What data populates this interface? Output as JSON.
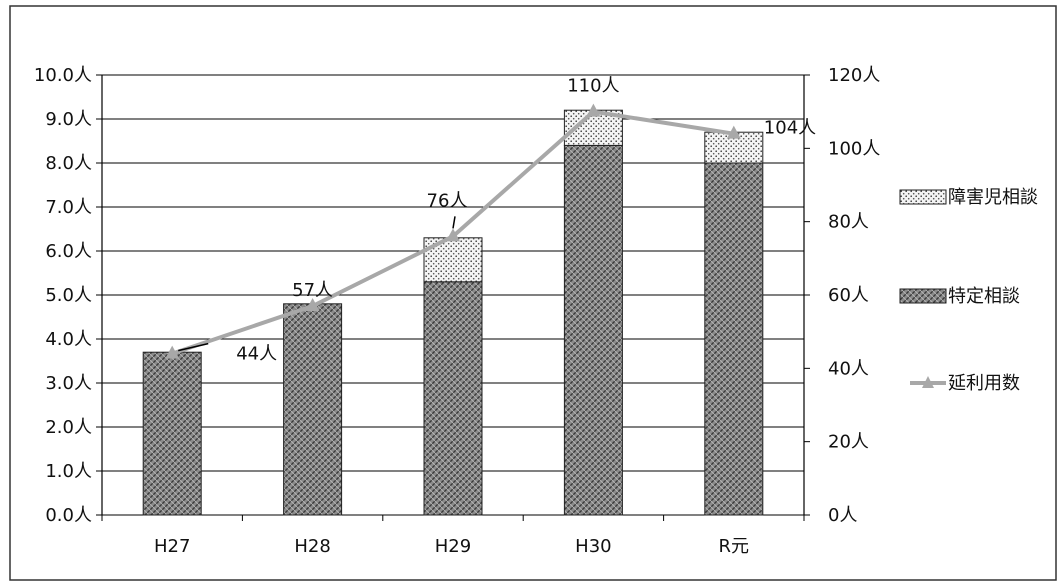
{
  "chart_data": {
    "type": "bar",
    "categories": [
      "H27",
      "H28",
      "H29",
      "H30",
      "R元"
    ],
    "series": [
      {
        "name": "特定相談",
        "kind": "bar",
        "axis": "left",
        "values": [
          3.7,
          4.8,
          5.3,
          8.4,
          8.0
        ],
        "pattern": "crosshatch"
      },
      {
        "name": "障害児相談",
        "kind": "bar",
        "axis": "left",
        "values": [
          0.0,
          0.0,
          1.0,
          0.8,
          0.7
        ],
        "pattern": "dots"
      },
      {
        "name": "延利用数",
        "kind": "line",
        "axis": "right",
        "values": [
          44,
          57,
          76,
          110,
          104
        ],
        "marker": "triangle"
      }
    ],
    "data_labels": [
      "44人",
      "57人",
      "76人",
      "110人",
      "104人"
    ],
    "left_axis": {
      "ylim": [
        0,
        10
      ],
      "ticks": [
        "0.0人",
        "1.0人",
        "2.0人",
        "3.0人",
        "4.0人",
        "5.0人",
        "6.0人",
        "7.0人",
        "8.0人",
        "9.0人",
        "10.0人"
      ]
    },
    "right_axis": {
      "ylim": [
        0,
        120
      ],
      "ticks": [
        "0人",
        "20人",
        "40人",
        "60人",
        "80人",
        "100人",
        "120人"
      ]
    },
    "grid": true,
    "legend_position": "right",
    "colors": {
      "line": "#a8a8a8",
      "bar_hatch": "#606060",
      "grid": "#000000"
    }
  }
}
